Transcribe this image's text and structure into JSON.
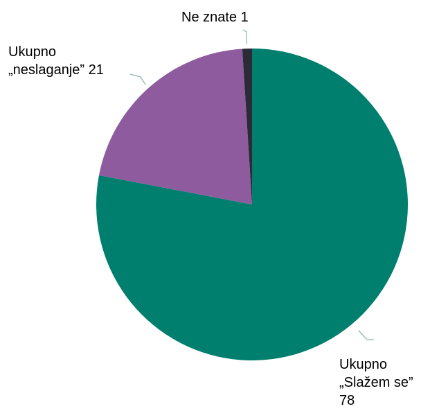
{
  "chart_data": {
    "type": "pie",
    "categories": [
      "Ukupno „Slažem se”",
      "Ukupno „neslaganje”",
      "Ne znate"
    ],
    "values": [
      78,
      21,
      1
    ],
    "colors": [
      "#007f6e",
      "#8e5c9e",
      "#2b2b38"
    ]
  }
}
